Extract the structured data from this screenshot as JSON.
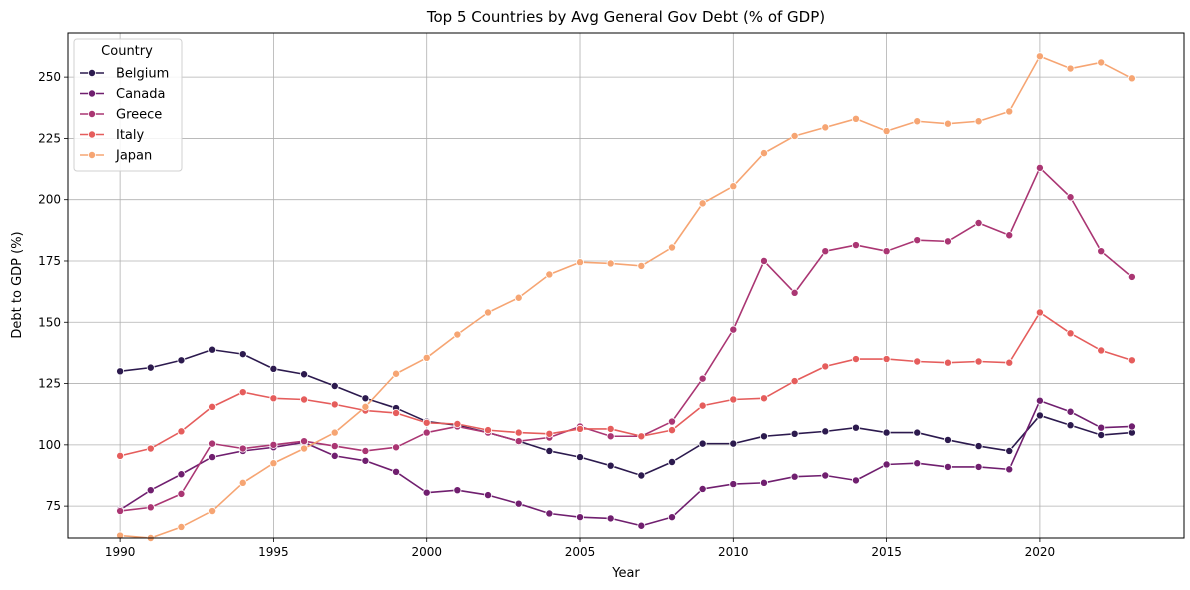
{
  "chart_data": {
    "type": "line",
    "title": "Top 5 Countries by Avg General Gov Debt (% of GDP)",
    "xlabel": "Year",
    "ylabel": "Debt to GDP (%)",
    "xlim": [
      1988.3,
      2024.7
    ],
    "ylim": [
      62,
      268
    ],
    "xticks": [
      1990,
      1995,
      2000,
      2005,
      2010,
      2015,
      2020
    ],
    "yticks": [
      75,
      100,
      125,
      150,
      175,
      200,
      225,
      250
    ],
    "grid": true,
    "legend": {
      "title": "Country",
      "position": "upper-left"
    },
    "x": [
      1990,
      1991,
      1992,
      1993,
      1994,
      1995,
      1996,
      1997,
      1998,
      1999,
      2000,
      2001,
      2002,
      2003,
      2004,
      2005,
      2006,
      2007,
      2008,
      2009,
      2010,
      2011,
      2012,
      2013,
      2014,
      2015,
      2016,
      2017,
      2018,
      2019,
      2020,
      2021,
      2022,
      2023
    ],
    "series": [
      {
        "name": "Belgium",
        "color": "#2c1a4e",
        "values": [
          130,
          131.5,
          134.5,
          138.8,
          137,
          131,
          128.8,
          124,
          119,
          115,
          109.5,
          108,
          105,
          101.5,
          97.5,
          95,
          91.5,
          87.5,
          93,
          100.5,
          100.5,
          103.5,
          104.5,
          105.5,
          107,
          105,
          105,
          102,
          99.5,
          97.5,
          112,
          108,
          104,
          105
        ]
      },
      {
        "name": "Canada",
        "color": "#701f6f",
        "values": [
          73.5,
          81.5,
          88,
          95,
          97.5,
          99,
          101,
          95.5,
          93.5,
          89,
          80.5,
          81.5,
          79.5,
          76,
          72,
          70.5,
          70,
          67,
          70.5,
          82,
          84,
          84.5,
          87,
          87.5,
          85.5,
          92,
          92.5,
          91,
          91,
          90,
          118,
          113.5,
          107,
          107.5
        ]
      },
      {
        "name": "Greece",
        "color": "#aa3673",
        "values": [
          73,
          74.5,
          80,
          100.5,
          98.5,
          100,
          101.5,
          99.5,
          97.5,
          99,
          105,
          107.5,
          105,
          101.5,
          103,
          107.5,
          103.5,
          103.5,
          109.5,
          127,
          147,
          175,
          162,
          179,
          181.5,
          179,
          183.5,
          183,
          190.5,
          185.5,
          213,
          201,
          179,
          168.5
        ]
      },
      {
        "name": "Italy",
        "color": "#e55d5c",
        "values": [
          95.5,
          98.5,
          105.5,
          115.5,
          121.5,
          119,
          118.5,
          116.5,
          114,
          113,
          109,
          108.5,
          106,
          105,
          104.5,
          106.5,
          106.5,
          103.5,
          106,
          116,
          118.5,
          119,
          126,
          132,
          135,
          135,
          134,
          133.5,
          134,
          133.5,
          154,
          145.5,
          138.5,
          134.5
        ]
      },
      {
        "name": "Japan",
        "color": "#f6a573",
        "values": [
          63,
          62,
          66.5,
          73,
          84.5,
          92.5,
          98.5,
          105,
          115.5,
          129,
          135.5,
          145,
          154,
          160,
          169.5,
          174.5,
          174,
          173,
          180.5,
          198.5,
          205.5,
          219,
          226,
          229.5,
          233,
          228,
          232,
          231,
          232,
          236,
          258.5,
          253.5,
          256,
          249.5
        ]
      }
    ]
  }
}
